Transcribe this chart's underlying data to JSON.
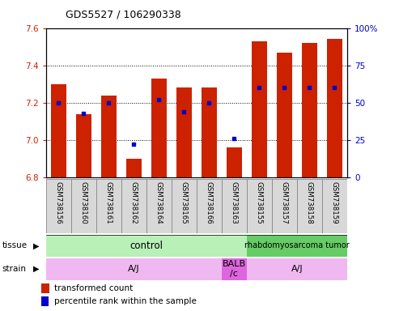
{
  "title": "GDS5527 / 106290338",
  "samples": [
    "GSM738156",
    "GSM738160",
    "GSM738161",
    "GSM738162",
    "GSM738164",
    "GSM738165",
    "GSM738166",
    "GSM738163",
    "GSM738155",
    "GSM738157",
    "GSM738158",
    "GSM738159"
  ],
  "transformed_counts": [
    7.3,
    7.14,
    7.24,
    6.9,
    7.33,
    7.28,
    7.28,
    6.96,
    7.53,
    7.47,
    7.52,
    7.54
  ],
  "percentile_ranks": [
    50,
    43,
    50,
    22,
    52,
    44,
    50,
    26,
    60,
    60,
    60,
    60
  ],
  "y_min": 6.8,
  "y_max": 7.6,
  "y_ticks": [
    6.8,
    7.0,
    7.2,
    7.4,
    7.6
  ],
  "y2_ticks": [
    0,
    25,
    50,
    75,
    100
  ],
  "bar_color": "#cc2200",
  "dot_color": "#0000cc",
  "tissue_regions": [
    {
      "label": "control",
      "start": 0,
      "end": 7,
      "color": "#b8f0b8"
    },
    {
      "label": "rhabdomyosarcoma tumor",
      "start": 8,
      "end": 11,
      "color": "#66cc66"
    }
  ],
  "strain_regions": [
    {
      "label": "A/J",
      "start": 0,
      "end": 6,
      "color": "#f0b8f0"
    },
    {
      "label": "BALB\n/c",
      "start": 7,
      "end": 7,
      "color": "#dd66dd"
    },
    {
      "label": "A/J",
      "start": 8,
      "end": 11,
      "color": "#f0b8f0"
    }
  ],
  "legend_red_label": "transformed count",
  "legend_blue_label": "percentile rank within the sample",
  "tick_color_left": "#cc2200",
  "tick_color_right": "#0000cc",
  "tissue_row_label": "tissue",
  "strain_row_label": "strain",
  "box_facecolor": "#d8d8d8",
  "box_edgecolor": "#888888"
}
